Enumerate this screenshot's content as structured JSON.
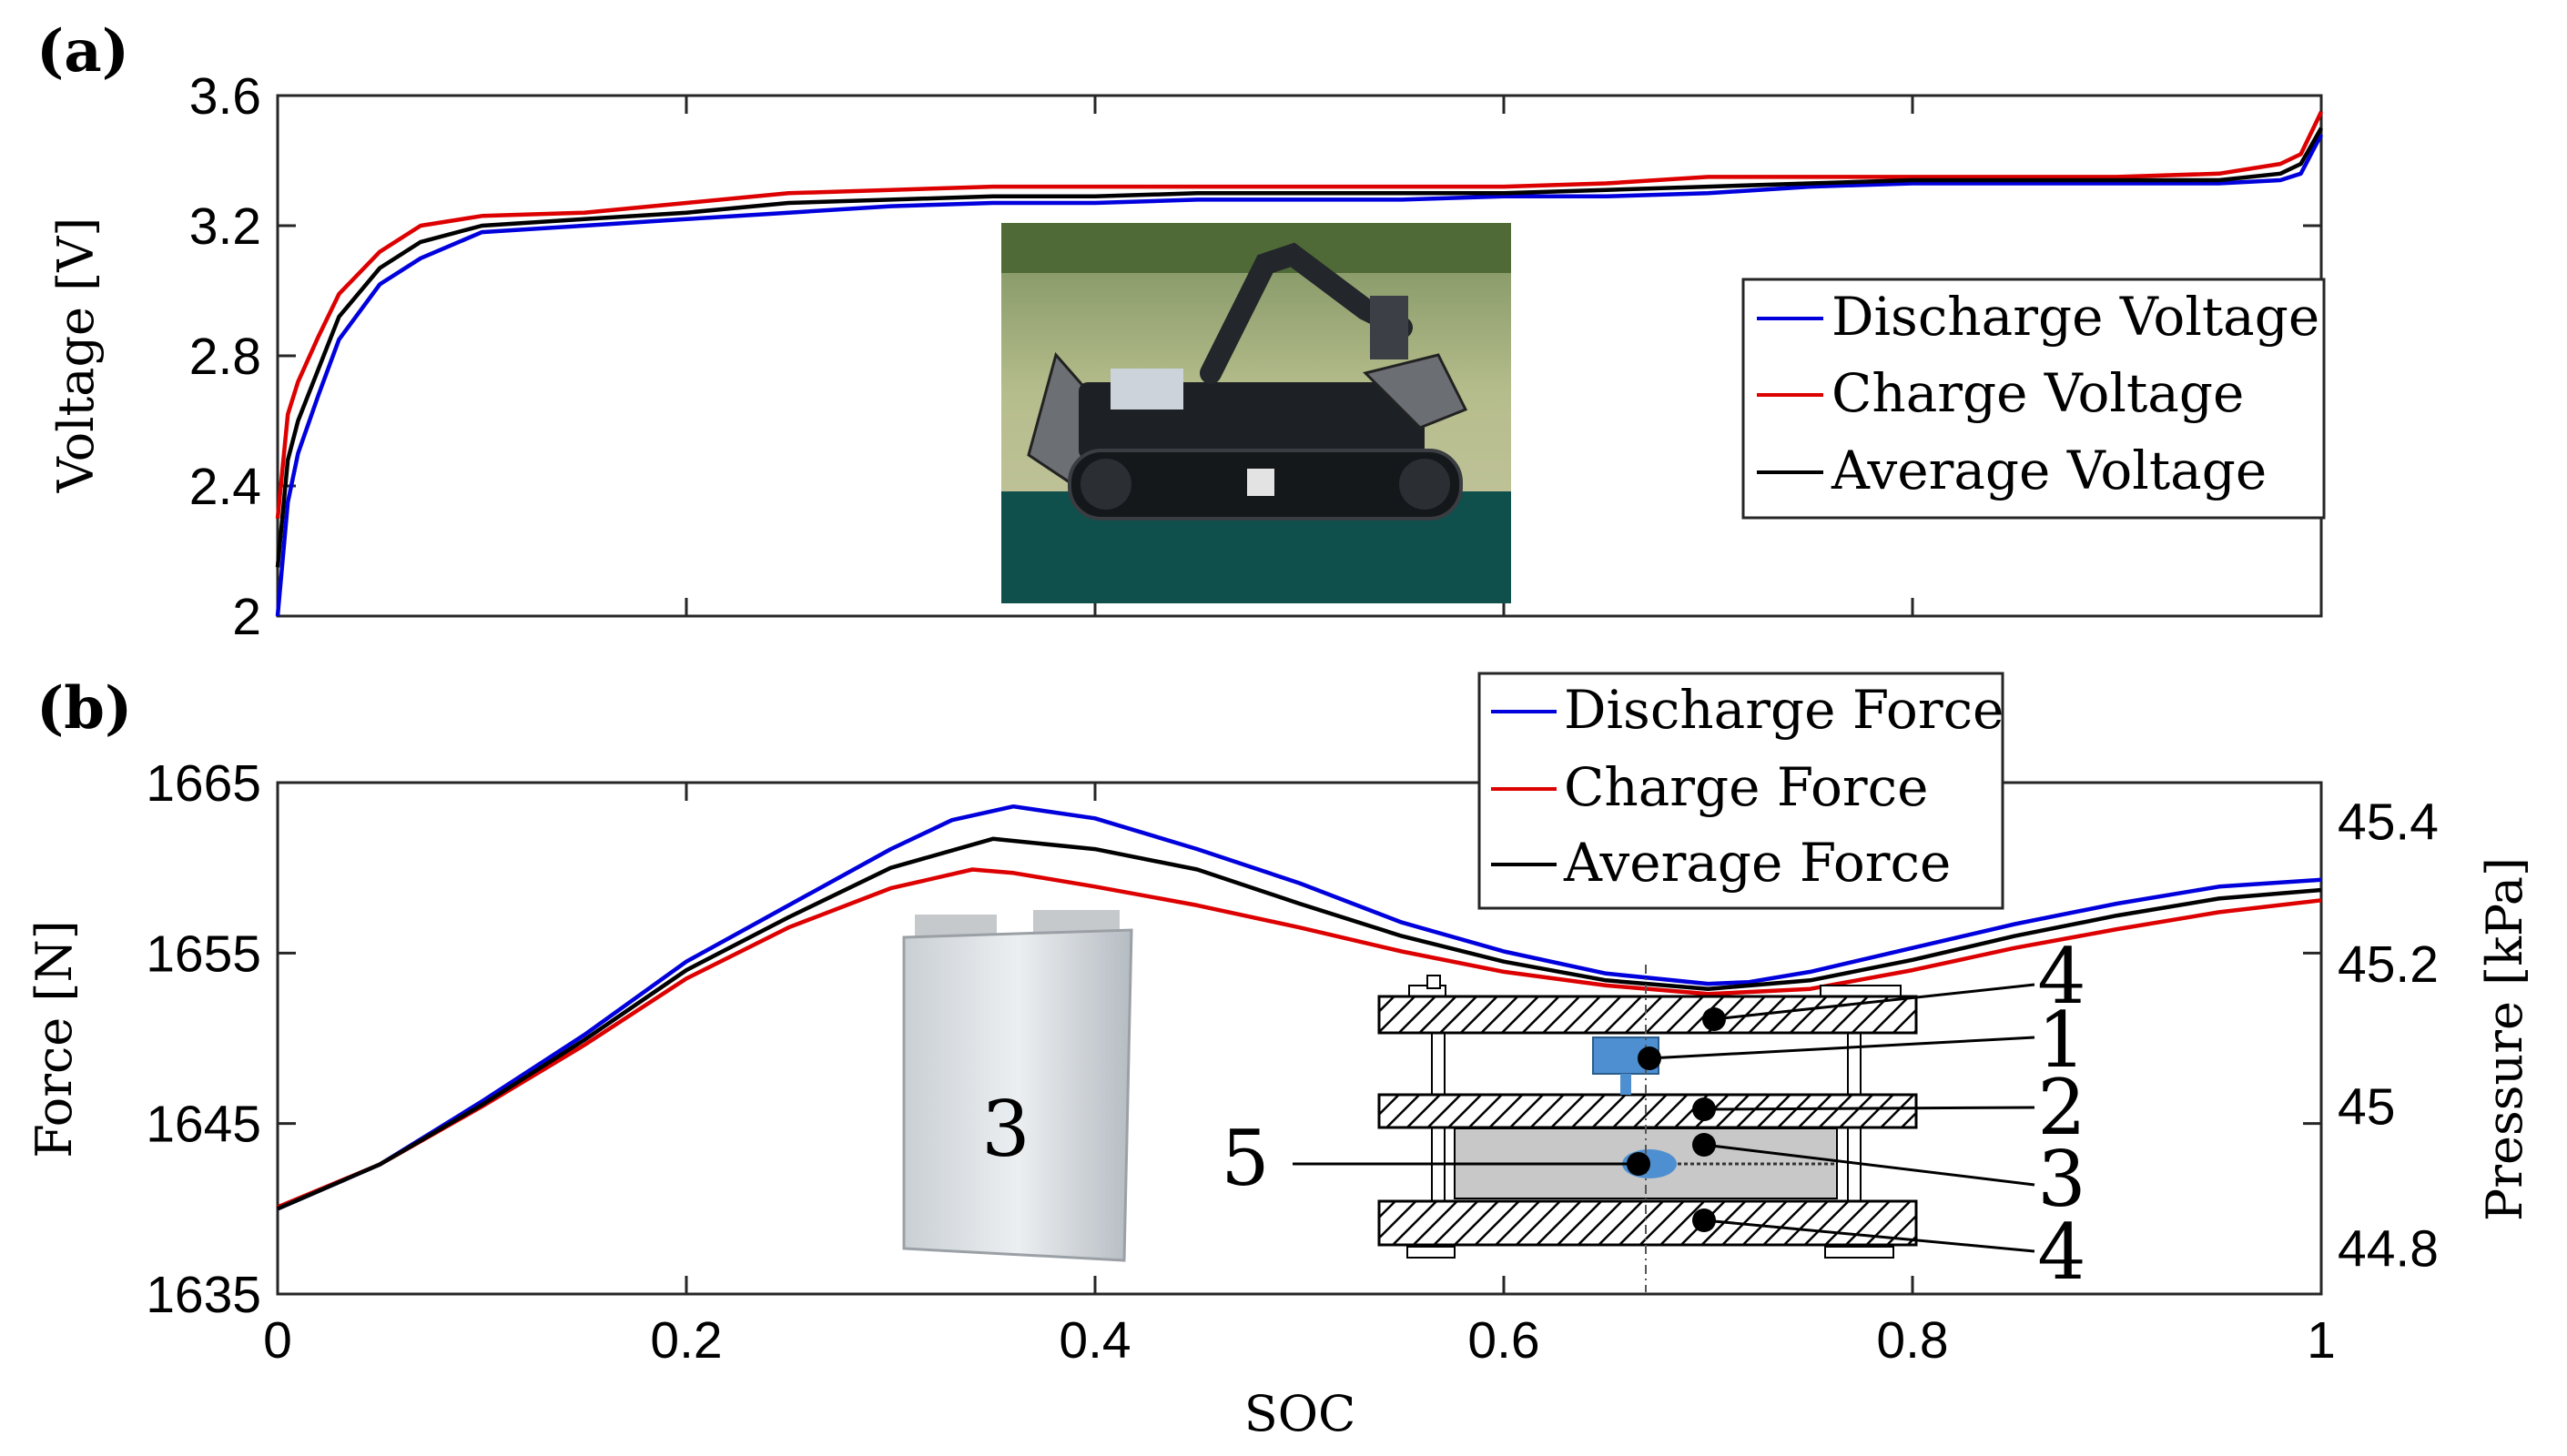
{
  "panels": {
    "a": "(a)",
    "b": "(b)"
  },
  "chart_data": [
    {
      "type": "line",
      "panel": "(a)",
      "xlabel": "",
      "ylabel": "Voltage [V]",
      "xlim": [
        0,
        1
      ],
      "ylim": [
        2,
        3.6
      ],
      "yticks": [
        "2",
        "2.4",
        "2.8",
        "3.2",
        "3.6"
      ],
      "legend": "right",
      "series": [
        {
          "name": "Discharge Voltage",
          "color": "#0000dd",
          "x": [
            0,
            0.005,
            0.01,
            0.02,
            0.03,
            0.05,
            0.07,
            0.1,
            0.15,
            0.2,
            0.25,
            0.3,
            0.35,
            0.4,
            0.45,
            0.5,
            0.55,
            0.6,
            0.65,
            0.7,
            0.75,
            0.8,
            0.85,
            0.9,
            0.95,
            0.98,
            0.99,
            1.0
          ],
          "y": [
            2.0,
            2.35,
            2.5,
            2.68,
            2.85,
            3.02,
            3.1,
            3.18,
            3.2,
            3.22,
            3.24,
            3.26,
            3.27,
            3.27,
            3.28,
            3.28,
            3.28,
            3.29,
            3.29,
            3.3,
            3.32,
            3.33,
            3.33,
            3.33,
            3.33,
            3.34,
            3.36,
            3.48
          ]
        },
        {
          "name": "Charge Voltage",
          "color": "#dd0000",
          "x": [
            0,
            0.005,
            0.01,
            0.02,
            0.03,
            0.05,
            0.07,
            0.1,
            0.15,
            0.2,
            0.25,
            0.3,
            0.35,
            0.4,
            0.45,
            0.5,
            0.55,
            0.6,
            0.65,
            0.7,
            0.75,
            0.8,
            0.85,
            0.9,
            0.95,
            0.98,
            0.99,
            1.0
          ],
          "y": [
            2.3,
            2.62,
            2.72,
            2.86,
            2.99,
            3.12,
            3.2,
            3.23,
            3.24,
            3.27,
            3.3,
            3.31,
            3.32,
            3.32,
            3.32,
            3.32,
            3.32,
            3.32,
            3.33,
            3.35,
            3.35,
            3.35,
            3.35,
            3.35,
            3.36,
            3.39,
            3.42,
            3.55
          ]
        },
        {
          "name": "Average Voltage",
          "color": "#000000",
          "x": [
            0,
            0.005,
            0.01,
            0.02,
            0.03,
            0.05,
            0.07,
            0.1,
            0.15,
            0.2,
            0.25,
            0.3,
            0.35,
            0.4,
            0.45,
            0.5,
            0.55,
            0.6,
            0.65,
            0.7,
            0.75,
            0.8,
            0.85,
            0.9,
            0.95,
            0.98,
            0.99,
            1.0
          ],
          "y": [
            2.15,
            2.48,
            2.6,
            2.76,
            2.92,
            3.07,
            3.15,
            3.2,
            3.22,
            3.24,
            3.27,
            3.28,
            3.29,
            3.29,
            3.3,
            3.3,
            3.3,
            3.3,
            3.31,
            3.32,
            3.33,
            3.34,
            3.34,
            3.34,
            3.34,
            3.36,
            3.39,
            3.5
          ]
        }
      ]
    },
    {
      "type": "line",
      "panel": "(b)",
      "xlabel": "SOC",
      "ylabel": "Force [N]",
      "y2label": "Pressure [kPa]",
      "xlim": [
        0,
        1
      ],
      "ylim": [
        1635,
        1665
      ],
      "y2lim": [
        44.7355,
        45.4545
      ],
      "xticks": [
        "0",
        "0.2",
        "0.4",
        "0.6",
        "0.8",
        "1"
      ],
      "yticks": [
        "1635",
        "1645",
        "1655",
        "1665"
      ],
      "y2ticks": [
        "44.8",
        "45",
        "45.2",
        "45.4"
      ],
      "legend": "top-center",
      "series": [
        {
          "name": "Discharge Force",
          "color": "#0000dd",
          "x": [
            0,
            0.05,
            0.1,
            0.15,
            0.2,
            0.25,
            0.3,
            0.33,
            0.36,
            0.4,
            0.45,
            0.5,
            0.55,
            0.6,
            0.65,
            0.7,
            0.72,
            0.75,
            0.8,
            0.85,
            0.9,
            0.95,
            1.0
          ],
          "y": [
            1640,
            1642.6,
            1646.3,
            1650.2,
            1654.5,
            1657.8,
            1661.1,
            1662.8,
            1663.6,
            1662.9,
            1661.1,
            1659.1,
            1656.8,
            1655.1,
            1653.8,
            1653.2,
            1653.3,
            1653.9,
            1655.3,
            1656.7,
            1657.9,
            1658.9,
            1659.3
          ]
        },
        {
          "name": "Charge Force",
          "color": "#dd0000",
          "x": [
            0,
            0.05,
            0.1,
            0.15,
            0.2,
            0.25,
            0.3,
            0.34,
            0.36,
            0.4,
            0.45,
            0.5,
            0.55,
            0.6,
            0.65,
            0.7,
            0.75,
            0.8,
            0.85,
            0.9,
            0.95,
            1.0
          ],
          "y": [
            1640.1,
            1642.6,
            1646,
            1649.6,
            1653.5,
            1656.5,
            1658.8,
            1659.9,
            1659.7,
            1658.9,
            1657.8,
            1656.5,
            1655.1,
            1653.9,
            1653.1,
            1652.6,
            1652.9,
            1654,
            1655.3,
            1656.4,
            1657.4,
            1658.1
          ]
        },
        {
          "name": "Average Force",
          "color": "#000000",
          "x": [
            0,
            0.05,
            0.1,
            0.15,
            0.2,
            0.25,
            0.3,
            0.35,
            0.4,
            0.45,
            0.5,
            0.55,
            0.6,
            0.65,
            0.7,
            0.75,
            0.8,
            0.85,
            0.9,
            0.95,
            1.0
          ],
          "y": [
            1640,
            1642.6,
            1646.1,
            1649.9,
            1654,
            1657.1,
            1660,
            1661.7,
            1661.1,
            1659.9,
            1657.9,
            1656,
            1654.5,
            1653.4,
            1652.9,
            1653.4,
            1654.6,
            1656,
            1657.2,
            1658.2,
            1658.7
          ]
        }
      ]
    }
  ],
  "inset_b": {
    "cell_label": "3",
    "labels": [
      "4",
      "1",
      "2",
      "3",
      "4",
      "5"
    ]
  }
}
